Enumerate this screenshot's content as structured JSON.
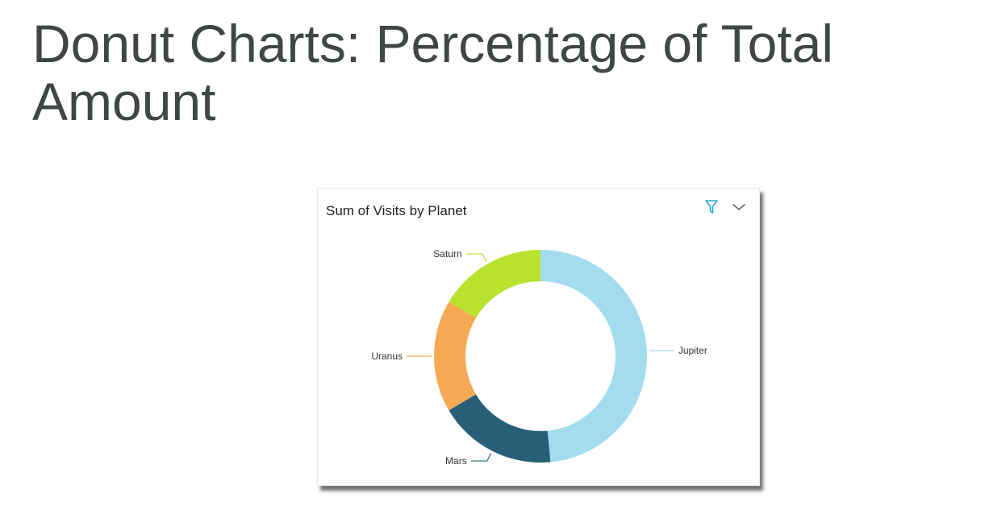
{
  "slide": {
    "title": "Donut Charts: Percentage of Total Amount"
  },
  "card": {
    "title": "Sum of Visits by Planet",
    "icons": [
      "filter-icon",
      "chevron-down-icon"
    ]
  },
  "colors": {
    "Jupiter": "#a3dcef",
    "Mars": "#285e78",
    "Uranus": "#f5a955",
    "Saturn": "#b8e22e",
    "filter": "#2aa3d8",
    "chevron": "#666666"
  },
  "chart_data": {
    "type": "pie",
    "donut": true,
    "title": "Sum of Visits by Planet",
    "categories": [
      "Jupiter",
      "Mars",
      "Uranus",
      "Saturn"
    ],
    "values": [
      48.5,
      18.0,
      17.0,
      16.5
    ],
    "start": "top, clockwise",
    "labels_outside": true
  }
}
